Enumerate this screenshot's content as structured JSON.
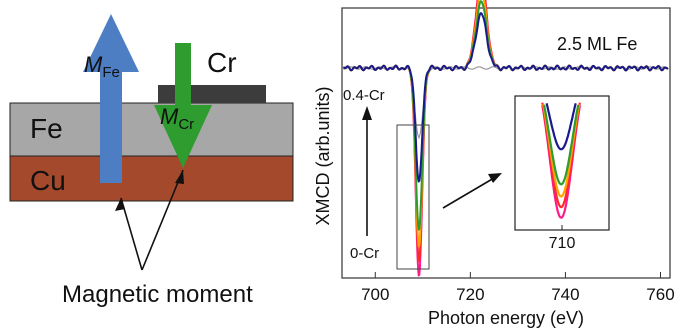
{
  "schematic": {
    "layers": {
      "cr": "Cr",
      "fe": "Fe",
      "cu": "Cu"
    },
    "moment_fe": {
      "main": "M",
      "sub": "Fe"
    },
    "moment_cr": {
      "main": "M",
      "sub": "Cr"
    },
    "caption": "Magnetic moment"
  },
  "colors": {
    "cu": "#a5492d",
    "fe": "#a7a7a7",
    "cr": "#3c3c3c",
    "arrow_fe": "#4d7ec4",
    "arrow_cr": "#2e9c2e"
  },
  "chart_data": {
    "type": "line",
    "annotation": "2.5 ML Fe",
    "xlabel": "Photon energy (eV)",
    "ylabel": "XMCD (arb.units)",
    "xlim": [
      693,
      762
    ],
    "xticks": [
      700,
      720,
      740,
      760
    ],
    "coverage_arrow": {
      "top_label": "0.4-Cr",
      "bottom_label": "0-Cr"
    },
    "inset": {
      "xtick": "710"
    },
    "series": [
      {
        "color": "#ff1a8c",
        "min": -1.0,
        "peak": 0.45
      },
      {
        "color": "#ff2a2a",
        "min": -0.93,
        "peak": 0.43
      },
      {
        "color": "#ffa500",
        "min": -0.86,
        "peak": 0.38
      },
      {
        "color": "#2e9c2e",
        "min": -0.78,
        "peak": 0.33
      },
      {
        "color": "#1a1a8c",
        "min": -0.55,
        "peak": 0.27
      }
    ]
  }
}
